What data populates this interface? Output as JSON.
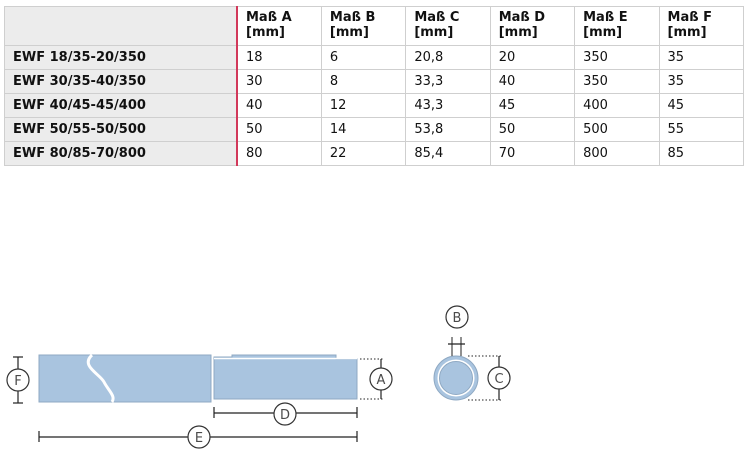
{
  "table": {
    "header_blank": "",
    "columns": [
      {
        "name": "Maß A",
        "unit": "[mm]"
      },
      {
        "name": "Maß B",
        "unit": "[mm]"
      },
      {
        "name": "Maß C",
        "unit": "[mm]"
      },
      {
        "name": "Maß D",
        "unit": "[mm]"
      },
      {
        "name": "Maß E",
        "unit": "[mm]"
      },
      {
        "name": "Maß F",
        "unit": "[mm]"
      }
    ],
    "rows": [
      {
        "name": "EWF 18/35-20/350",
        "values": [
          "18",
          "6",
          "20,8",
          "20",
          "350",
          "35"
        ]
      },
      {
        "name": "EWF 30/35-40/350",
        "values": [
          "30",
          "8",
          "33,3",
          "40",
          "350",
          "35"
        ]
      },
      {
        "name": "EWF 40/45-45/400",
        "values": [
          "40",
          "12",
          "43,3",
          "45",
          "400",
          "45"
        ]
      },
      {
        "name": "EWF 50/55-50/500",
        "values": [
          "50",
          "14",
          "53,8",
          "50",
          "500",
          "55"
        ]
      },
      {
        "name": "EWF 80/85-70/800",
        "values": [
          "80",
          "22",
          "85,4",
          "70",
          "800",
          "85"
        ]
      }
    ]
  },
  "diagram": {
    "labels": {
      "A": "A",
      "B": "B",
      "C": "C",
      "D": "D",
      "E": "E",
      "F": "F"
    },
    "colors": {
      "fill": "#a9c4df",
      "stroke": "#8fa9c3",
      "dim": "#222222",
      "badge_text": "#4a4a4a"
    }
  }
}
